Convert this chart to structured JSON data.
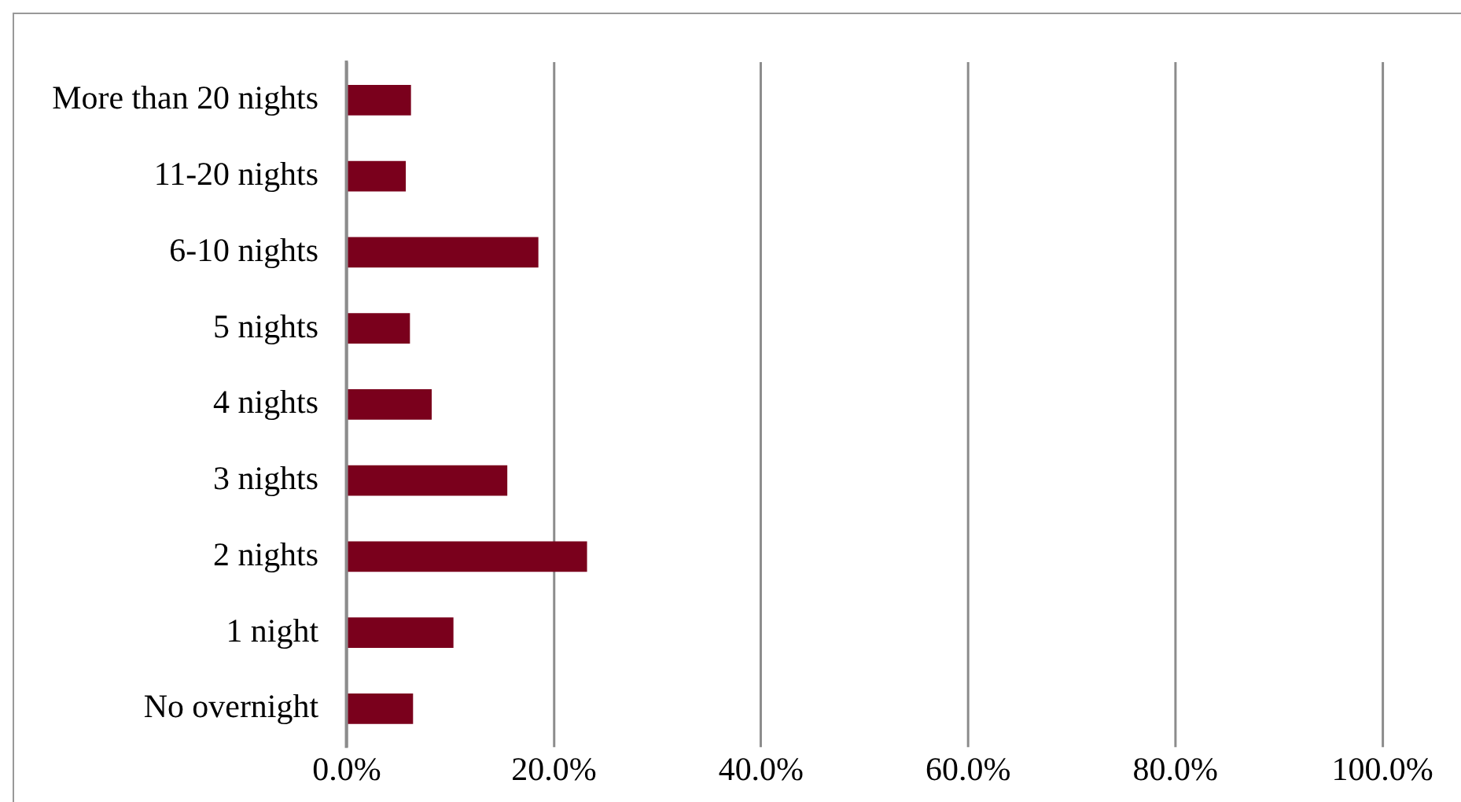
{
  "chart_data": {
    "type": "bar",
    "orientation": "horizontal",
    "categories": [
      "More than 20 nights",
      "11-20 nights",
      "6-10 nights",
      "5 nights",
      "4 nights",
      "3 nights",
      "2 nights",
      "1 night",
      "No overnight"
    ],
    "values": [
      6.2,
      5.7,
      18.5,
      6.1,
      8.2,
      15.5,
      23.2,
      10.3,
      6.4
    ],
    "color": "#7a001c",
    "xlim": [
      0,
      100
    ],
    "xticks": [
      {
        "value": 0,
        "label": "0.0%"
      },
      {
        "value": 20,
        "label": "20.0%"
      },
      {
        "value": 40,
        "label": "40.0%"
      },
      {
        "value": 60,
        "label": "60.0%"
      },
      {
        "value": 80,
        "label": "80.0%"
      },
      {
        "value": 100,
        "label": "100.0%"
      }
    ],
    "grid": "x",
    "legend": false
  }
}
